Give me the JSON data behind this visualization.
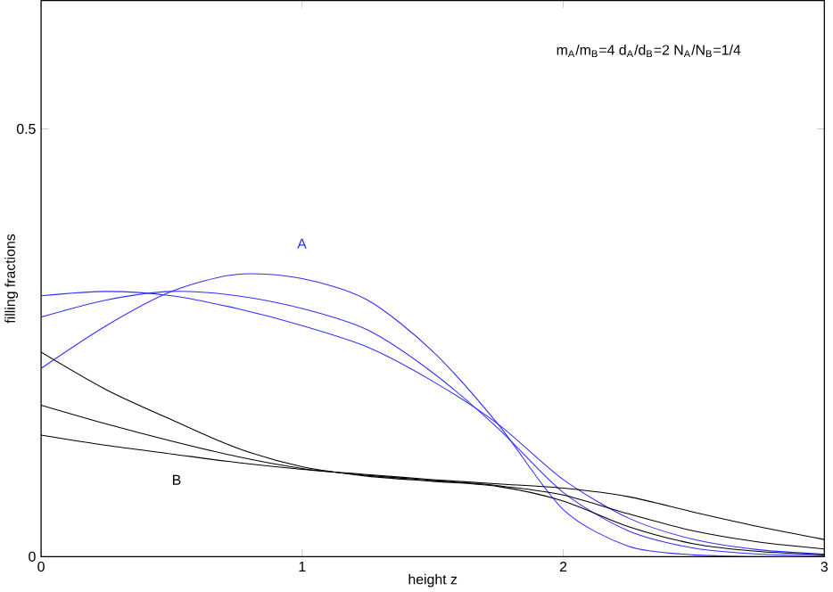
{
  "chart_data": {
    "type": "line",
    "xlabel": "height z",
    "ylabel": "filling fractions",
    "x": [
      0,
      0.25,
      0.5,
      0.75,
      1,
      1.25,
      1.5,
      1.75,
      2,
      2.25,
      2.5,
      2.75,
      3
    ],
    "xlim": [
      0,
      3
    ],
    "ylim": [
      0,
      0.65
    ],
    "xticks": [
      0,
      1,
      2,
      3
    ],
    "yticks": [
      0,
      0.5
    ],
    "grid": false,
    "marker": "none",
    "line_style": "solid",
    "series": [
      {
        "color": "#3030ff",
        "values": [
          0.22,
          0.27,
          0.31,
          0.33,
          0.325,
          0.3,
          0.24,
          0.155,
          0.055,
          0.012,
          0.002,
          0.0,
          0.0
        ]
      },
      {
        "color": "#3030ff",
        "values": [
          0.305,
          0.31,
          0.305,
          0.29,
          0.27,
          0.245,
          0.205,
          0.155,
          0.09,
          0.045,
          0.02,
          0.008,
          0.003
        ]
      },
      {
        "color": "#3030ff",
        "values": [
          0.28,
          0.3,
          0.31,
          0.305,
          0.29,
          0.265,
          0.215,
          0.15,
          0.075,
          0.03,
          0.01,
          0.003,
          0.001
        ]
      },
      {
        "color": "#000000",
        "values": [
          0.239,
          0.195,
          0.16,
          0.127,
          0.105,
          0.094,
          0.088,
          0.082,
          0.065,
          0.035,
          0.015,
          0.006,
          0.002
        ]
      },
      {
        "color": "#000000",
        "values": [
          0.177,
          0.155,
          0.135,
          0.117,
          0.103,
          0.095,
          0.089,
          0.083,
          0.072,
          0.05,
          0.03,
          0.017,
          0.009
        ]
      },
      {
        "color": "#000000",
        "values": [
          0.142,
          0.13,
          0.12,
          0.11,
          0.102,
          0.096,
          0.09,
          0.085,
          0.08,
          0.07,
          0.052,
          0.035,
          0.02
        ]
      }
    ],
    "annotations": [
      "A",
      "B",
      "m$_{A}$/m$_{B}$=4  d$_{A}$/d$_{B}$=2  N$_{A}$/N$_{B}$=1/4"
    ]
  }
}
